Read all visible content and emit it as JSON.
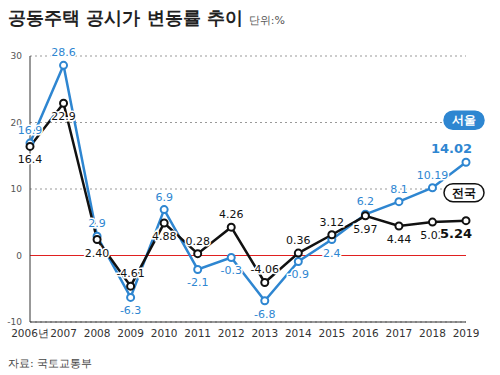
{
  "chart_data": {
    "type": "line",
    "title": "공동주택 공시가 변동률 추이",
    "subtitle": "단위:%",
    "source": "자료: 국토교통부",
    "categories": [
      "2006년",
      "2007",
      "2008",
      "2009",
      "2010",
      "2011",
      "2012",
      "2013",
      "2014",
      "2015",
      "2016",
      "2017",
      "2018",
      "2019"
    ],
    "series": [
      {
        "name": "서울",
        "color": "#2e86d1",
        "values": [
          16.9,
          28.6,
          2.9,
          -6.3,
          6.9,
          -2.1,
          -0.3,
          -6.8,
          -0.9,
          2.4,
          6.2,
          8.1,
          10.19,
          14.02
        ],
        "value_labels": [
          "16.9",
          "28.6",
          "2.9",
          "-6.3",
          "6.9",
          "-2.1",
          "-0.3",
          "-6.8",
          "-0.9",
          "2.4",
          "6.2",
          "8.1",
          "10.19",
          "14.02"
        ]
      },
      {
        "name": "전국",
        "color": "#111111",
        "values": [
          16.4,
          22.9,
          2.4,
          -4.61,
          4.88,
          0.28,
          4.26,
          -4.06,
          0.36,
          3.12,
          5.97,
          4.44,
          5.02,
          5.24
        ],
        "value_labels": [
          "16.4",
          "22.9",
          "2.40",
          "-4.61",
          "4.88",
          "0.28",
          "4.26",
          "-4.06",
          "0.36",
          "3.12",
          "5.97",
          "4.44",
          "5.02",
          "5.24"
        ]
      }
    ],
    "ylim": [
      -10,
      30
    ],
    "yticks": [
      -10,
      0,
      10,
      20,
      30
    ],
    "grid": true,
    "data_labels": true,
    "marker": "circle"
  }
}
